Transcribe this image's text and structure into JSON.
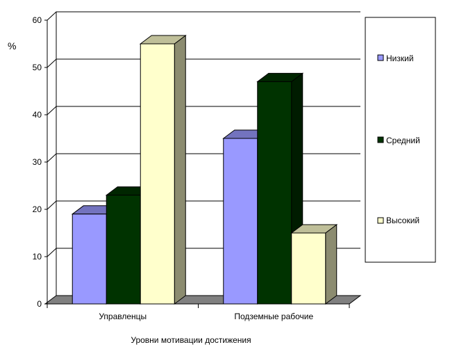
{
  "chart_data": {
    "type": "bar",
    "title": "",
    "xlabel": "Уровни мотивации достижения",
    "ylabel": "%",
    "categories": [
      "Управленцы",
      "Подземные рабочие"
    ],
    "series": [
      {
        "name": "Низкий",
        "values": [
          19,
          35
        ],
        "color": "#9999ff"
      },
      {
        "name": "Средний",
        "values": [
          23,
          47
        ],
        "color": "#003300"
      },
      {
        "name": "Высокий",
        "values": [
          55,
          15
        ],
        "color": "#ffffcc"
      }
    ],
    "ylim": [
      0,
      60
    ],
    "yticks": [
      0,
      10,
      20,
      30,
      40,
      50,
      60
    ],
    "grid": true,
    "three_d": true,
    "legend_position": "right"
  }
}
